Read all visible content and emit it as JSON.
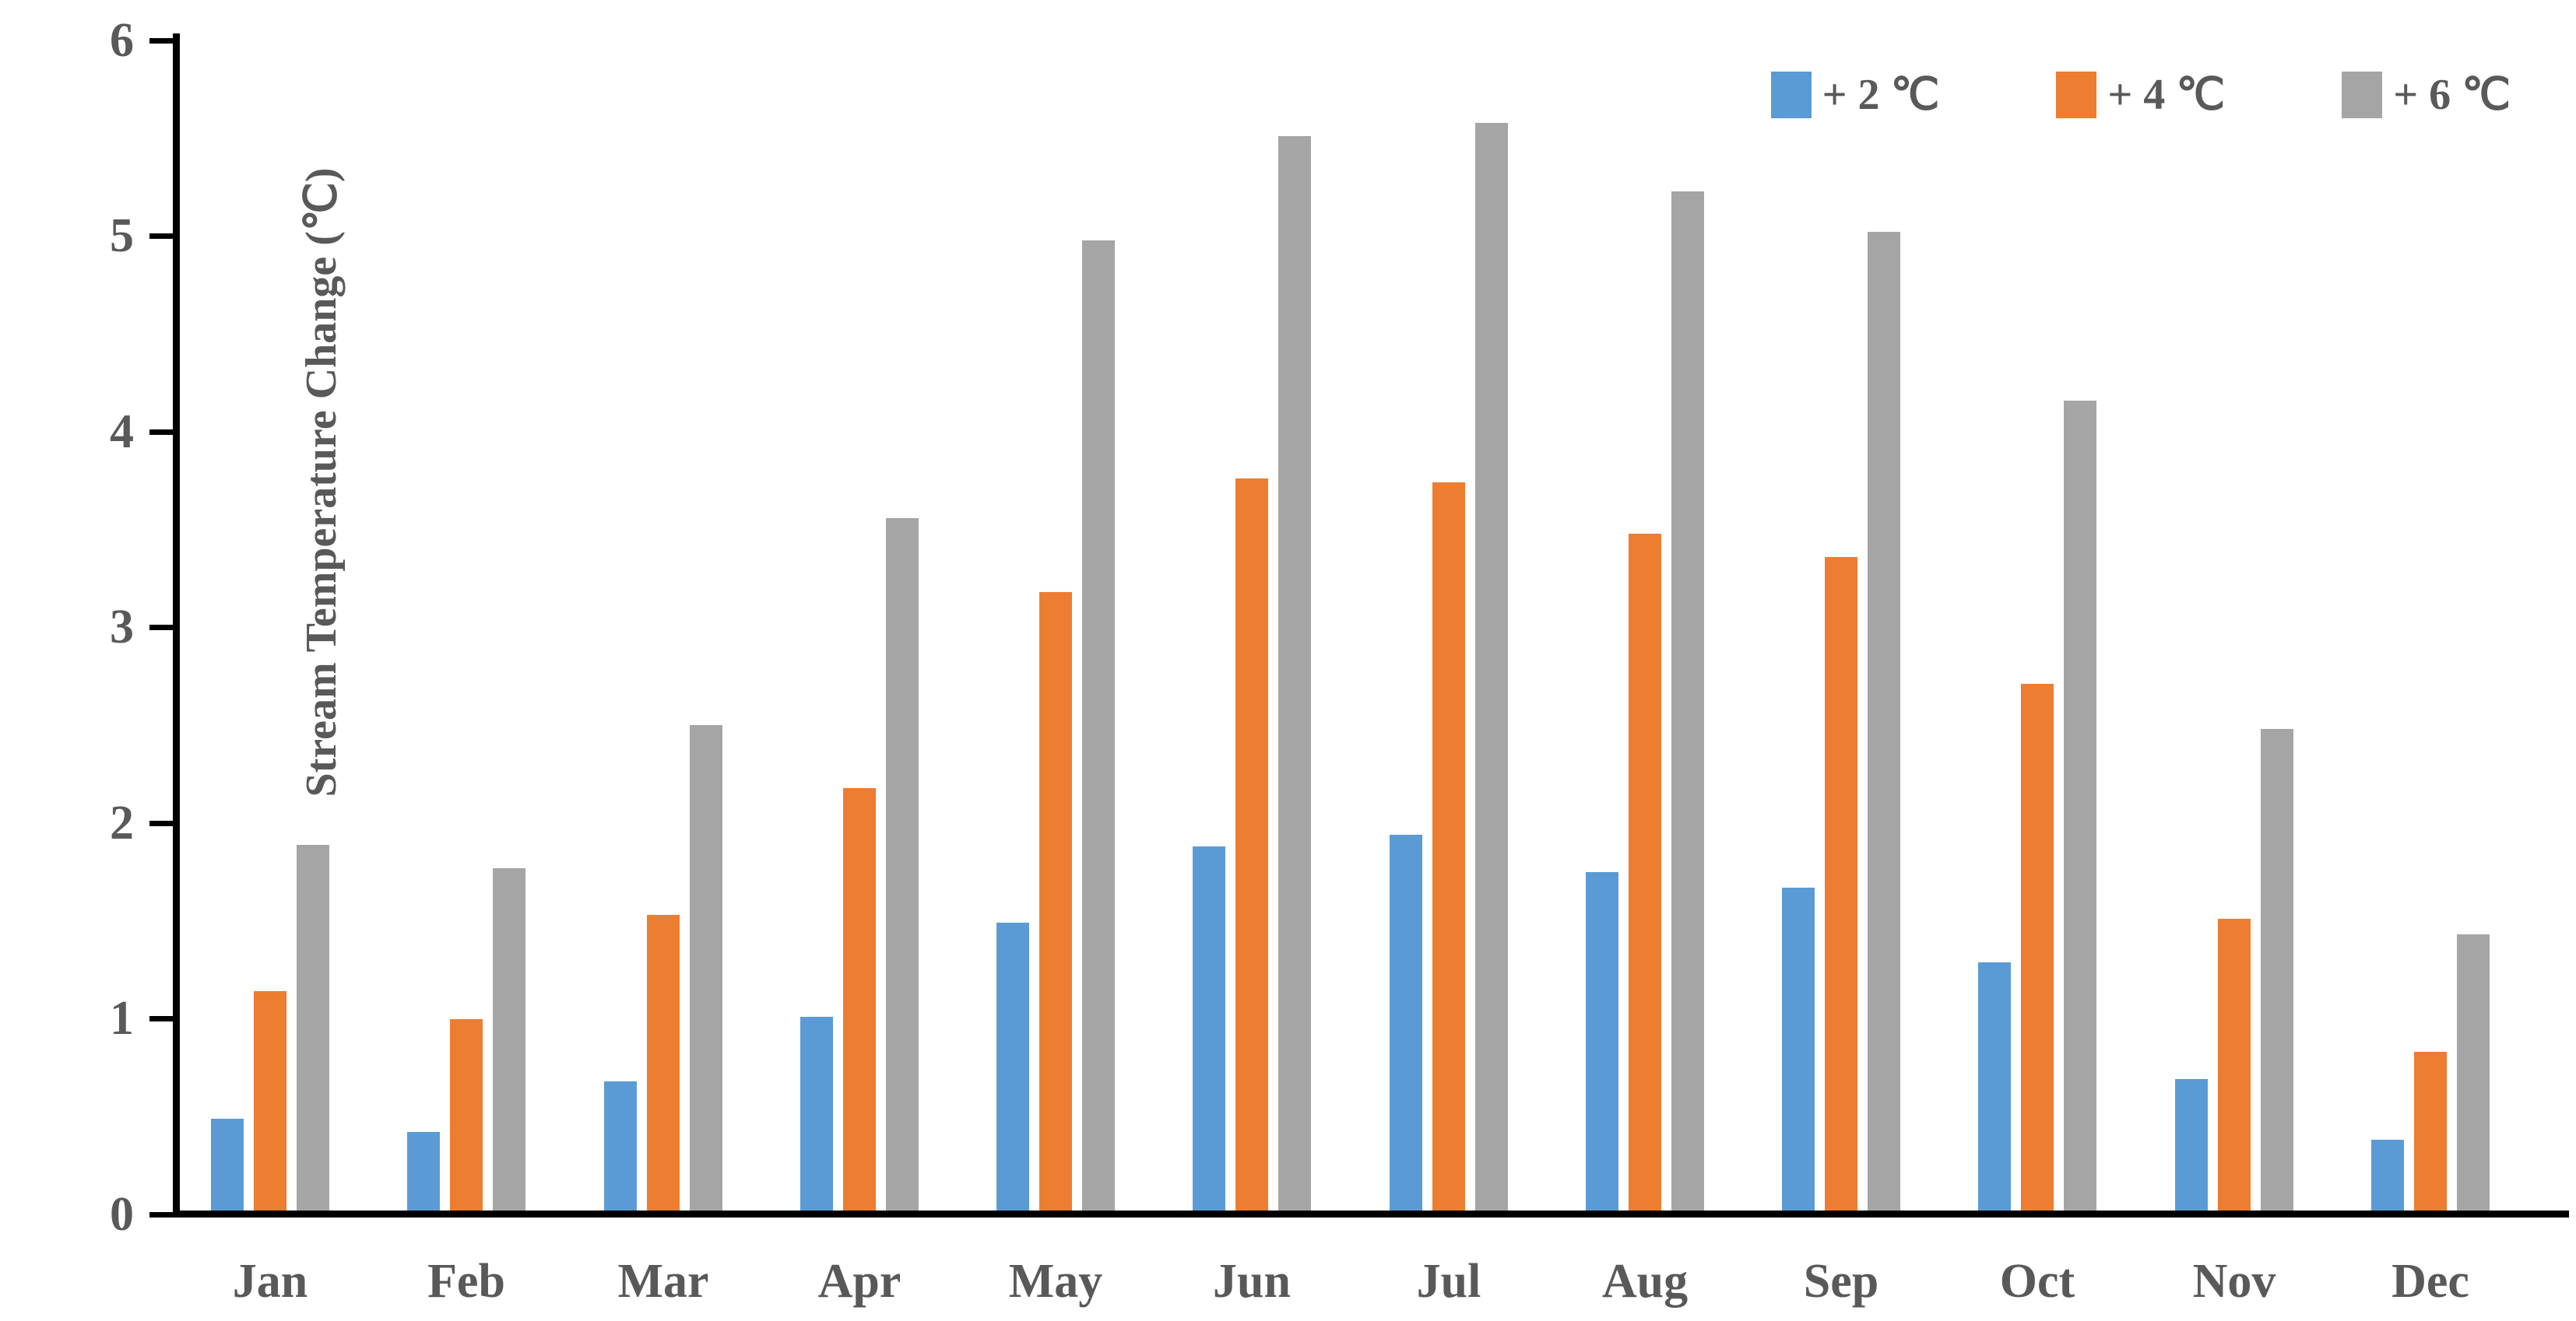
{
  "chart_data": {
    "type": "bar",
    "title": "",
    "categories": [
      "Jan",
      "Feb",
      "Mar",
      "Apr",
      "May",
      "Jun",
      "Jul",
      "Aug",
      "Sep",
      "Oct",
      "Nov",
      "Dec"
    ],
    "series": [
      {
        "name": "+ 2 ℃",
        "color": "#5B9BD5",
        "values": [
          0.47,
          0.4,
          0.66,
          0.99,
          1.47,
          1.86,
          1.92,
          1.73,
          1.65,
          1.27,
          0.67,
          0.36
        ]
      },
      {
        "name": "+ 4 ℃",
        "color": "#ED7D31",
        "values": [
          1.12,
          0.98,
          1.51,
          2.16,
          3.16,
          3.74,
          3.72,
          3.46,
          3.34,
          2.69,
          1.49,
          0.81
        ]
      },
      {
        "name": "+ 6 ℃",
        "color": "#A5A5A5",
        "values": [
          1.87,
          1.75,
          2.48,
          3.54,
          4.96,
          5.49,
          5.56,
          5.21,
          5.0,
          4.14,
          2.46,
          1.41
        ]
      }
    ],
    "xlabel": "",
    "ylabel": "Stream Temperature Change (℃)",
    "ylim": [
      0,
      6
    ],
    "yticks": [
      0,
      1,
      2,
      3,
      4,
      5,
      6
    ],
    "legend_position": "top-right",
    "grid": false,
    "axis_color": "#000000",
    "label_color": "#595959"
  }
}
